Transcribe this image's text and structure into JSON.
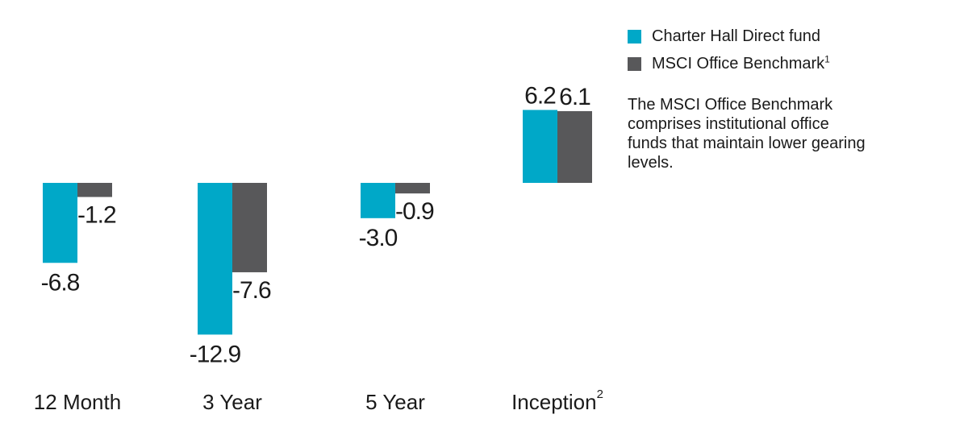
{
  "colors": {
    "fund": "#00a8c8",
    "benchmark": "#58585a",
    "text": "#1a1a1a"
  },
  "legend": {
    "items": [
      {
        "label": "Charter Hall Direct fund",
        "superscript": "",
        "color": "#00a8c8"
      },
      {
        "label": "MSCI Office Benchmark",
        "superscript": "1",
        "color": "#58585a"
      }
    ]
  },
  "note": "The MSCI Office Benchmark comprises institutional office funds that maintain lower gearing levels.",
  "chart_data": {
    "type": "bar",
    "categories": [
      {
        "label": "12 Month",
        "superscript": ""
      },
      {
        "label": "3 Year",
        "superscript": ""
      },
      {
        "label": "5 Year",
        "superscript": ""
      },
      {
        "label": "Inception",
        "superscript": "2"
      }
    ],
    "series": [
      {
        "name": "Charter Hall Direct fund",
        "values": [
          -6.8,
          -12.9,
          -3.0,
          6.2
        ],
        "labels": [
          "-6.8",
          "-12.9",
          "-3.0",
          "6.2"
        ],
        "color": "#00a8c8"
      },
      {
        "name": "MSCI Office Benchmark",
        "values": [
          -1.2,
          -7.6,
          -0.9,
          6.1
        ],
        "labels": [
          "-1.2",
          "-7.6",
          "-0.9",
          "6.1"
        ],
        "color": "#58585a"
      }
    ],
    "title": "",
    "xlabel": "",
    "ylabel": "",
    "grid": false,
    "legend_position": "top-right"
  }
}
